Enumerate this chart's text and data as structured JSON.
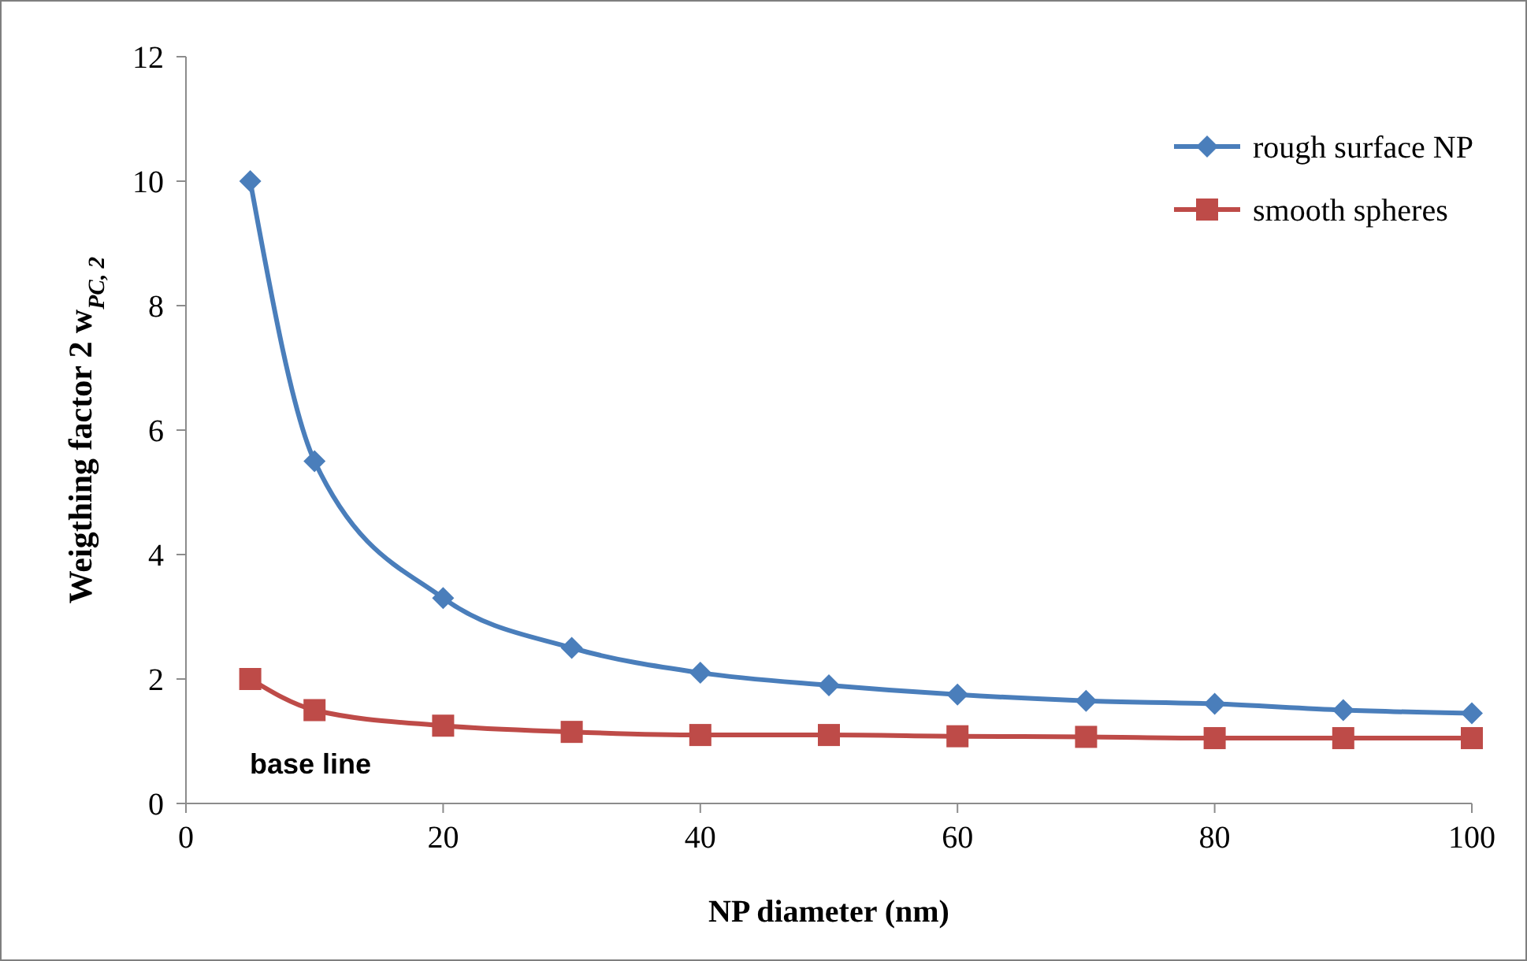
{
  "chart_data": {
    "type": "line",
    "xlabel": "NP diameter (nm)",
    "ylabel": "Weigthing  factor 2  w$_{PC, 2}$",
    "x": [
      5,
      10,
      20,
      30,
      40,
      50,
      60,
      70,
      80,
      90,
      100
    ],
    "series": [
      {
        "name": "rough surface NP",
        "color": "#4a7ebb",
        "marker": "diamond",
        "values": [
          10,
          5.5,
          3.3,
          2.5,
          2.1,
          1.9,
          1.75,
          1.65,
          1.6,
          1.5,
          1.45
        ]
      },
      {
        "name": "smooth spheres",
        "color": "#be4b48",
        "marker": "square",
        "values": [
          2,
          1.5,
          1.25,
          1.15,
          1.1,
          1.1,
          1.08,
          1.07,
          1.05,
          1.05,
          1.05
        ]
      }
    ],
    "annotations": [
      "base line"
    ],
    "xlim": [
      0,
      100
    ],
    "xticks": [
      0,
      20,
      40,
      60,
      80,
      100
    ],
    "ylim": [
      0,
      12
    ],
    "yticks": [
      0,
      2,
      4,
      6,
      8,
      10,
      12
    ],
    "grid": false,
    "legend": "top right"
  }
}
